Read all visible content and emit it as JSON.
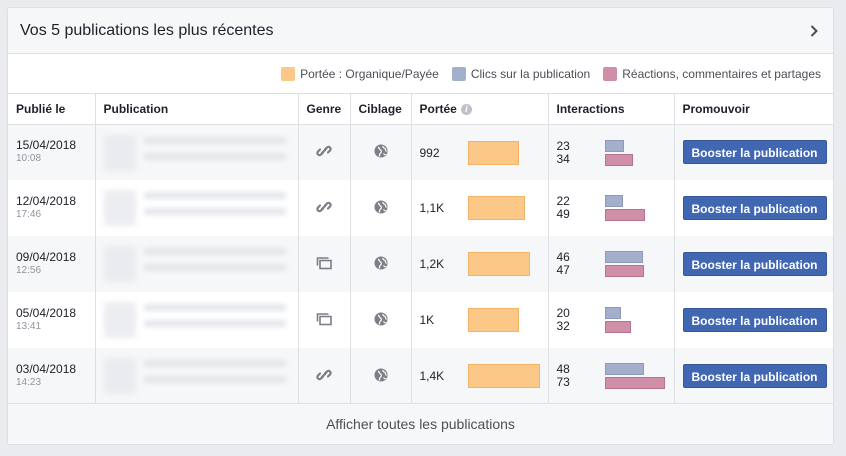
{
  "header": {
    "title": "Vos 5 publications les plus récentes"
  },
  "legend": [
    {
      "label": "Portée : Organique/Payée",
      "color": "#fcc888"
    },
    {
      "label": "Clics sur la publication",
      "color": "#a4b0cb"
    },
    {
      "label": "Réactions, commentaires et partages",
      "color": "#d08fa8"
    }
  ],
  "columns": {
    "published": "Publié le",
    "publication": "Publication",
    "type": "Genre",
    "targeting": "Ciblage",
    "reach": "Portée",
    "interactions": "Interactions",
    "promote": "Promouvoir"
  },
  "rows": [
    {
      "date": "15/04/2018",
      "time": "10:08",
      "type_icon": "link-icon",
      "targeting_icon": "globe-icon",
      "reach_label": "992",
      "reach_value": 992,
      "clicks": "23",
      "reactions": "34",
      "clicks_value": 23,
      "reactions_value": 34,
      "button": "Booster la publication"
    },
    {
      "date": "12/04/2018",
      "time": "17:46",
      "type_icon": "link-icon",
      "targeting_icon": "globe-icon",
      "reach_label": "1,1K",
      "reach_value": 1100,
      "clicks": "22",
      "reactions": "49",
      "clicks_value": 22,
      "reactions_value": 49,
      "button": "Booster la publication"
    },
    {
      "date": "09/04/2018",
      "time": "12:56",
      "type_icon": "album-icon",
      "targeting_icon": "globe-icon",
      "reach_label": "1,2K",
      "reach_value": 1200,
      "clicks": "46",
      "reactions": "47",
      "clicks_value": 46,
      "reactions_value": 47,
      "button": "Booster la publication"
    },
    {
      "date": "05/04/2018",
      "time": "13:41",
      "type_icon": "album-icon",
      "targeting_icon": "globe-icon",
      "reach_label": "1K",
      "reach_value": 1000,
      "clicks": "20",
      "reactions": "32",
      "clicks_value": 20,
      "reactions_value": 32,
      "button": "Booster la publication"
    },
    {
      "date": "03/04/2018",
      "time": "14:23",
      "type_icon": "link-icon",
      "targeting_icon": "globe-icon",
      "reach_label": "1,4K",
      "reach_value": 1400,
      "clicks": "48",
      "reactions": "73",
      "clicks_value": 48,
      "reactions_value": 73,
      "button": "Booster la publication"
    }
  ],
  "footer": {
    "label": "Afficher toutes les publications"
  }
}
